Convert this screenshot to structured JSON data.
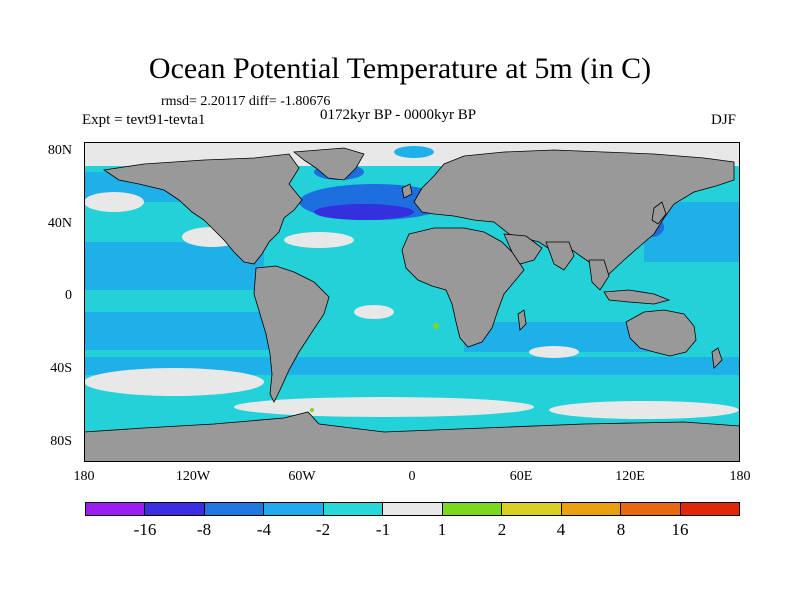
{
  "title": "Ocean Potential Temperature at 5m (in C)",
  "stats": "rmsd= 2.20117 diff= -1.80676",
  "period": "0172kyr BP - 0000kyr BP",
  "experiment": "Expt = tevt91-tevta1",
  "season": "DJF",
  "y_axis_labels": [
    "80N",
    "40N",
    "0",
    "40S",
    "80S"
  ],
  "x_axis_labels": [
    "180",
    "120W",
    "60W",
    "0",
    "60E",
    "120E",
    "180"
  ],
  "colorbar": {
    "colors": [
      "#9a1cf0",
      "#3b2ee0",
      "#1f78e0",
      "#22aaee",
      "#26d8d8",
      "#e8e8e8",
      "#7cd81c",
      "#d8d020",
      "#e8a010",
      "#e86810",
      "#e02808"
    ],
    "labels": [
      "-16",
      "-8",
      "-4",
      "-2",
      "-1",
      "1",
      "2",
      "4",
      "8",
      "16"
    ]
  },
  "map_colors": {
    "land": "#999999",
    "ocean_base": "#22d2d8",
    "ocean_mid": "#1eb0e8",
    "ocean_cold": "#1d6fe0",
    "ocean_deep": "#3330dd",
    "neutral": "#e8e8e8",
    "warm_yellow": "#d8d020",
    "warm_green": "#7cd81c"
  }
}
